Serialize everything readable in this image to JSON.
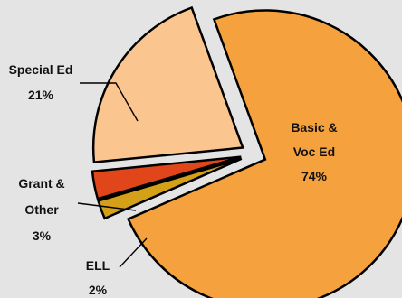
{
  "chart_data": {
    "type": "pie",
    "title": "",
    "legend": "none",
    "slices": [
      {
        "name": "Basic & Voc Ed",
        "label_lines": [
          "Basic &",
          "Voc Ed"
        ],
        "value": 74,
        "value_label": "74%",
        "color": "#f4a13e",
        "exploded": true
      },
      {
        "name": "ELL",
        "label_lines": [
          "ELL"
        ],
        "value": 2,
        "value_label": "2%",
        "color": "#d3a017",
        "exploded": true
      },
      {
        "name": "Grant & Other",
        "label_lines": [
          "Grant &",
          "Other"
        ],
        "value": 3,
        "value_label": "3%",
        "color": "#e0461a",
        "exploded": true
      },
      {
        "name": "Special Ed",
        "label_lines": [
          "Special Ed"
        ],
        "value": 21,
        "value_label": "21%",
        "color": "#fbc58f",
        "exploded": true
      }
    ]
  }
}
